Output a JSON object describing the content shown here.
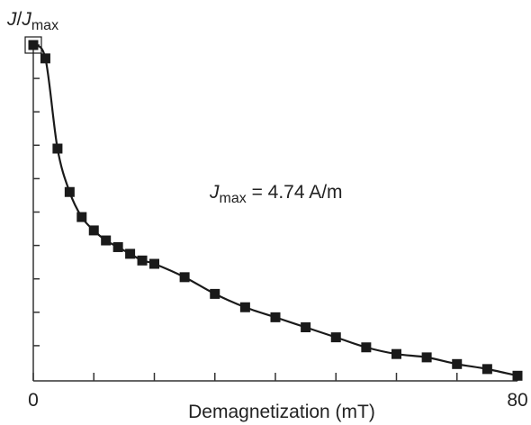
{
  "chart_data": {
    "type": "line",
    "title": "",
    "xlabel": "Demagnetization (mT)",
    "ylabel": {
      "main": "J",
      "slash": "/",
      "sub_base": "J",
      "subscript": "max"
    },
    "xlim": [
      0,
      80
    ],
    "ylim": [
      0,
      1
    ],
    "x_tick_labels": [
      "0",
      "80"
    ],
    "x_tick_values": [
      0,
      10,
      20,
      30,
      40,
      50,
      60,
      70,
      80
    ],
    "y_tick_count": 10,
    "grid": false,
    "annotation": {
      "main": "J",
      "subscript": "max",
      "rest": " = 4.74 A/m"
    },
    "series": [
      {
        "x": [
          0,
          2,
          4,
          6,
          8,
          10,
          12,
          14,
          16,
          18,
          20,
          25,
          30,
          35,
          40,
          45,
          50,
          55,
          60,
          65,
          70,
          75,
          80
        ],
        "y": [
          1.0,
          0.96,
          0.69,
          0.56,
          0.485,
          0.445,
          0.415,
          0.395,
          0.375,
          0.355,
          0.345,
          0.305,
          0.255,
          0.215,
          0.185,
          0.155,
          0.125,
          0.095,
          0.075,
          0.065,
          0.045,
          0.03,
          0.01
        ]
      }
    ],
    "colors": {
      "line": "#1a1a1a",
      "marker": "#1a1a1a",
      "axis": "#333333"
    }
  }
}
